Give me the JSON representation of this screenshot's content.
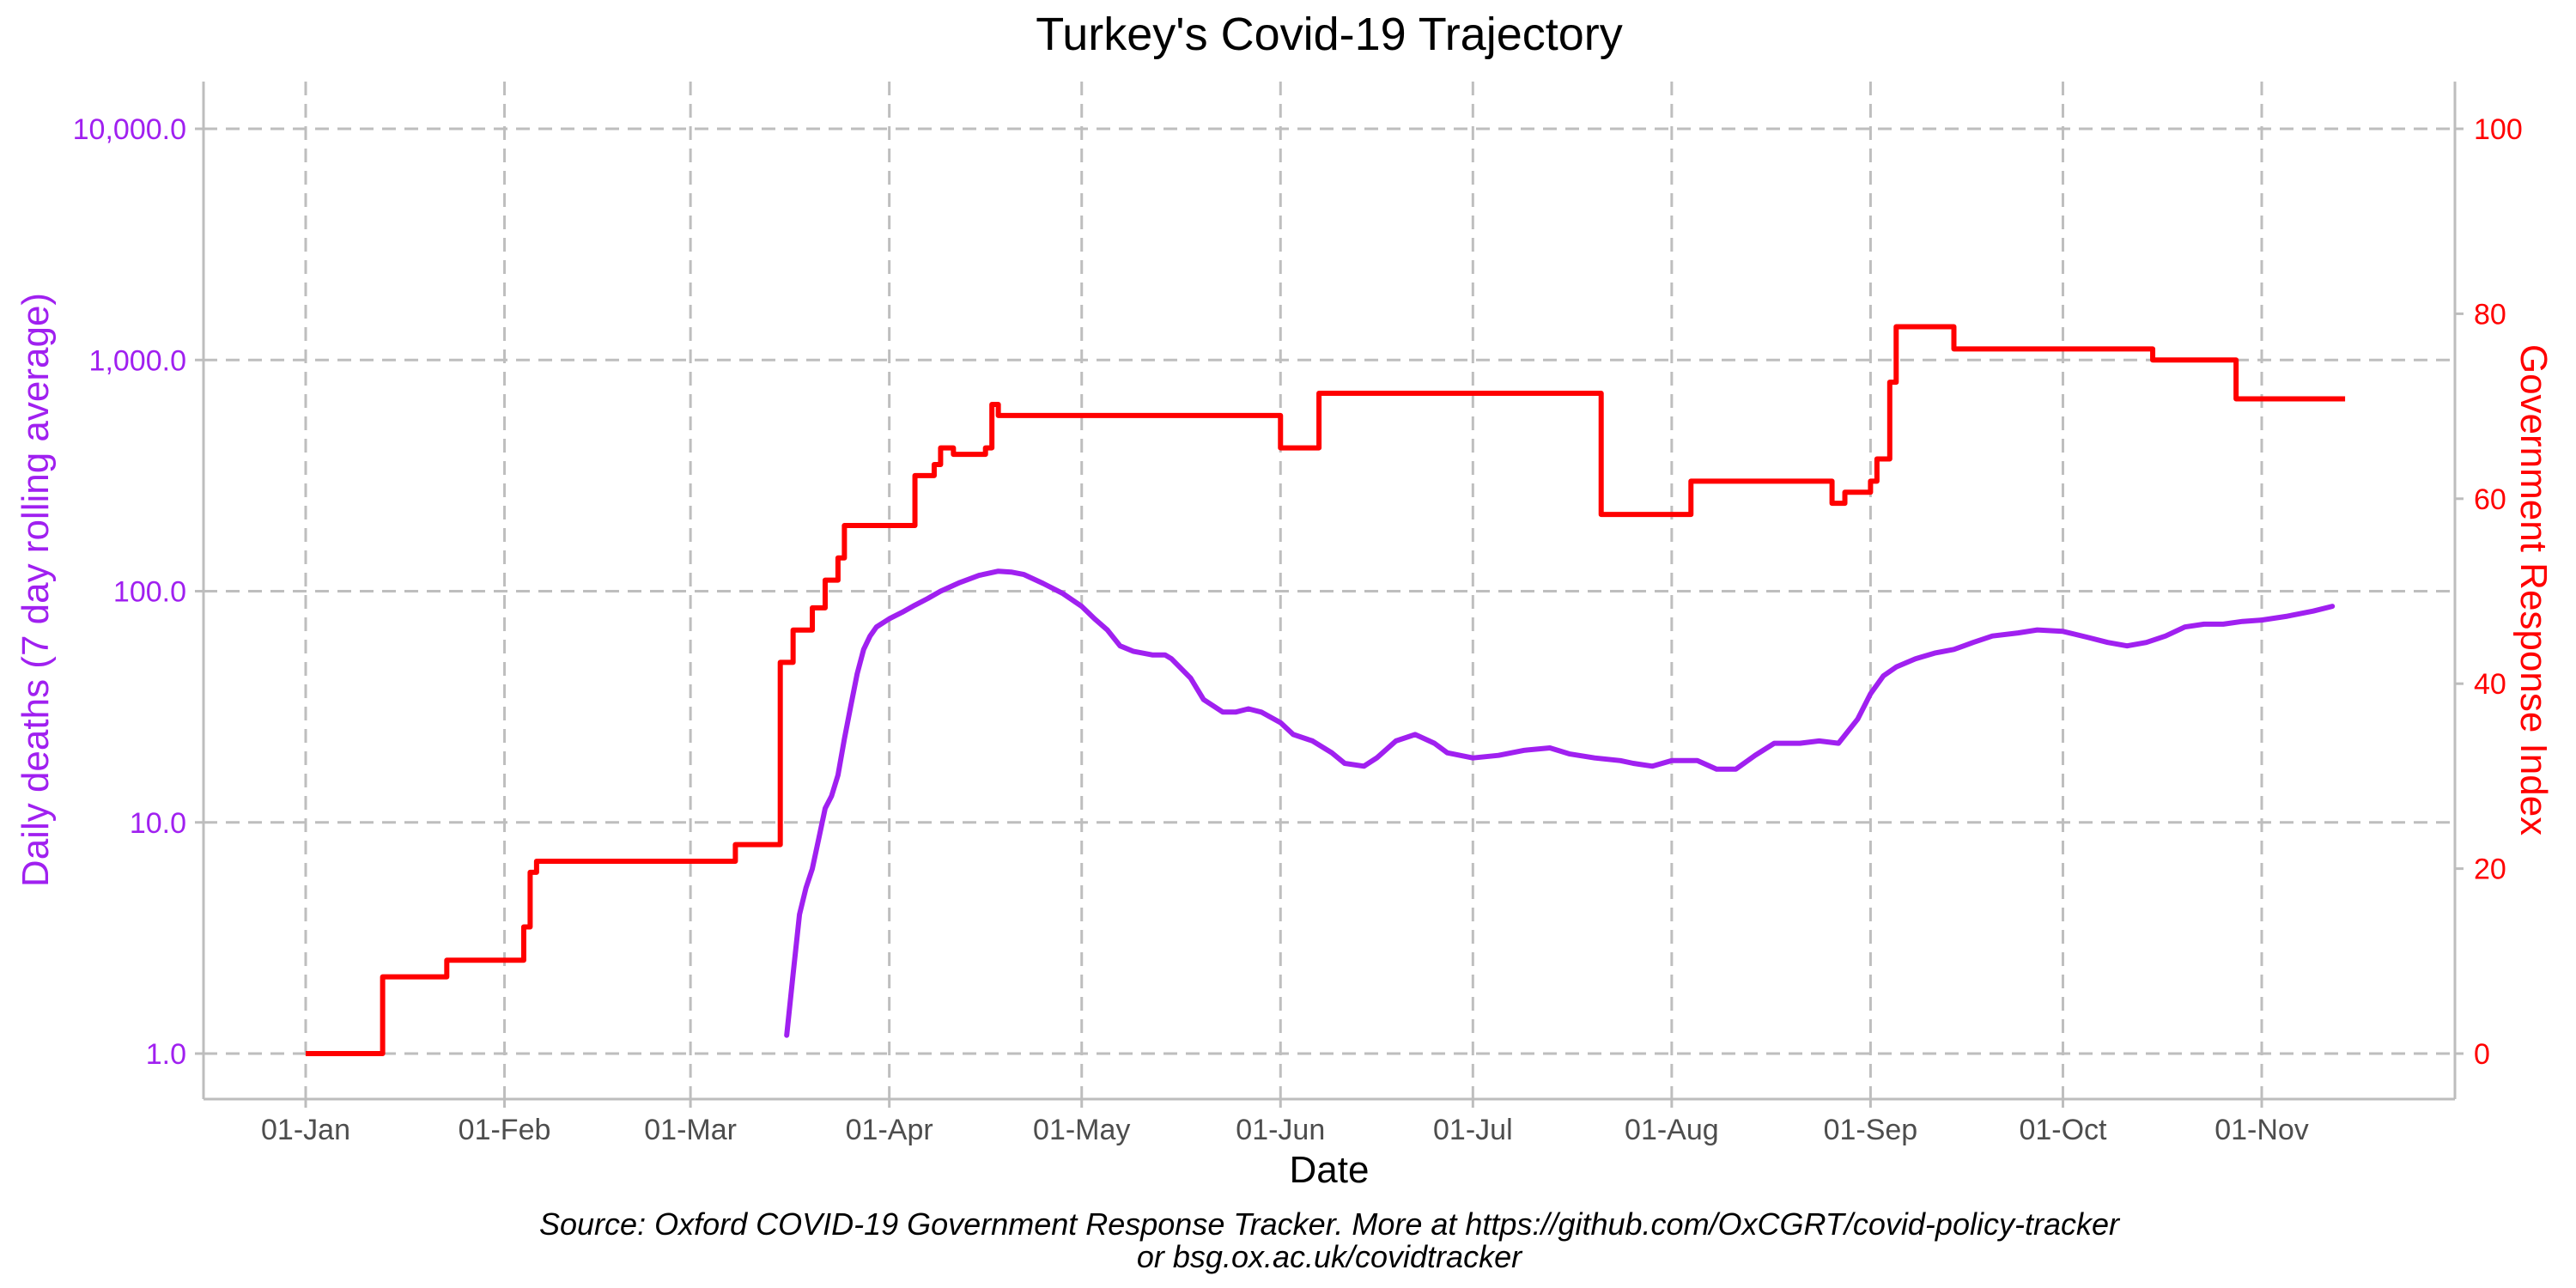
{
  "chart_data": {
    "type": "line",
    "title": "Turkey's Covid-19 Trajectory",
    "xlabel": "Date",
    "ylabel": "Daily deaths (7 day rolling average)",
    "y2label": "Government Response Index",
    "caption_line1": "Source: Oxford COVID-19 Government Response Tracker. More at https://github.com/OxCGRT/covid-policy-tracker",
    "caption_line2": "or bsg.ox.ac.uk/covidtracker",
    "x_ticks": [
      "01-Jan",
      "01-Feb",
      "01-Mar",
      "01-Apr",
      "01-May",
      "01-Jun",
      "01-Jul",
      "01-Aug",
      "01-Sep",
      "01-Oct",
      "01-Nov"
    ],
    "y_ticks": [
      "1.0",
      "10.0",
      "100.0",
      "1,000.0",
      "10,000.0"
    ],
    "y_tick_values": [
      1,
      10,
      100,
      1000,
      10000
    ],
    "y_scale": "log",
    "y2_ticks": [
      "0",
      "20",
      "40",
      "60",
      "80",
      "100"
    ],
    "y2_tick_values": [
      0,
      20,
      40,
      60,
      80,
      100
    ],
    "y2_lim": [
      0,
      100
    ],
    "grid": "dashed major gridlines",
    "colors": {
      "deaths": "#a020f0",
      "response": "#ff0000",
      "grid": "#bebebe",
      "axis": "#bdbdbd",
      "tick_text": "#4d4d4d"
    },
    "series": [
      {
        "name": "Daily deaths (7 day rolling average)",
        "axis": "left",
        "points": [
          [
            "03-16",
            1.2
          ],
          [
            "03-17",
            2.2
          ],
          [
            "03-18",
            4.0
          ],
          [
            "03-19",
            5.2
          ],
          [
            "03-20",
            6.3
          ],
          [
            "03-21",
            8.5
          ],
          [
            "03-22",
            11.5
          ],
          [
            "03-23",
            13.0
          ],
          [
            "03-24",
            16.0
          ],
          [
            "03-25",
            23.0
          ],
          [
            "03-26",
            32.0
          ],
          [
            "03-27",
            44.0
          ],
          [
            "03-28",
            56.0
          ],
          [
            "03-29",
            64.0
          ],
          [
            "03-30",
            70.0
          ],
          [
            "04-01",
            76.0
          ],
          [
            "04-03",
            81.0
          ],
          [
            "04-05",
            87.0
          ],
          [
            "04-07",
            93.0
          ],
          [
            "04-09",
            100.0
          ],
          [
            "04-12",
            109.0
          ],
          [
            "04-15",
            117.0
          ],
          [
            "04-18",
            122.0
          ],
          [
            "04-20",
            121.0
          ],
          [
            "04-22",
            118.0
          ],
          [
            "04-25",
            108.0
          ],
          [
            "04-28",
            98.0
          ],
          [
            "05-01",
            86.0
          ],
          [
            "05-03",
            76.0
          ],
          [
            "05-05",
            68.0
          ],
          [
            "05-07",
            58.0
          ],
          [
            "05-09",
            55.0
          ],
          [
            "05-12",
            53.0
          ],
          [
            "05-14",
            53.0
          ],
          [
            "05-15",
            51.0
          ],
          [
            "05-18",
            42.0
          ],
          [
            "05-20",
            34.0
          ],
          [
            "05-23",
            30.0
          ],
          [
            "05-25",
            30.0
          ],
          [
            "05-27",
            31.0
          ],
          [
            "05-29",
            30.0
          ],
          [
            "06-01",
            27.0
          ],
          [
            "06-03",
            24.0
          ],
          [
            "06-06",
            22.5
          ],
          [
            "06-09",
            20.0
          ],
          [
            "06-11",
            18.0
          ],
          [
            "06-14",
            17.5
          ],
          [
            "06-16",
            19.0
          ],
          [
            "06-19",
            22.5
          ],
          [
            "06-22",
            24.0
          ],
          [
            "06-25",
            22.0
          ],
          [
            "06-27",
            20.0
          ],
          [
            "07-01",
            19.0
          ],
          [
            "07-05",
            19.5
          ],
          [
            "07-09",
            20.5
          ],
          [
            "07-13",
            21.0
          ],
          [
            "07-16",
            19.8
          ],
          [
            "07-20",
            19.0
          ],
          [
            "07-24",
            18.5
          ],
          [
            "07-26",
            18.0
          ],
          [
            "07-29",
            17.5
          ],
          [
            "08-01",
            18.5
          ],
          [
            "08-05",
            18.5
          ],
          [
            "08-08",
            17.0
          ],
          [
            "08-11",
            17.0
          ],
          [
            "08-14",
            19.5
          ],
          [
            "08-17",
            22.0
          ],
          [
            "08-21",
            22.0
          ],
          [
            "08-24",
            22.5
          ],
          [
            "08-27",
            22.0
          ],
          [
            "08-30",
            28.0
          ],
          [
            "09-01",
            36.0
          ],
          [
            "09-03",
            43.0
          ],
          [
            "09-05",
            47.0
          ],
          [
            "09-08",
            51.0
          ],
          [
            "09-11",
            54.0
          ],
          [
            "09-14",
            56.0
          ],
          [
            "09-17",
            60.0
          ],
          [
            "09-20",
            64.0
          ],
          [
            "09-24",
            66.0
          ],
          [
            "09-27",
            68.0
          ],
          [
            "10-01",
            67.0
          ],
          [
            "10-05",
            63.0
          ],
          [
            "10-08",
            60.0
          ],
          [
            "10-11",
            58.0
          ],
          [
            "10-14",
            60.0
          ],
          [
            "10-17",
            64.0
          ],
          [
            "10-20",
            70.0
          ],
          [
            "10-23",
            72.0
          ],
          [
            "10-26",
            72.0
          ],
          [
            "10-29",
            74.0
          ],
          [
            "11-01",
            75.0
          ],
          [
            "11-05",
            78.0
          ],
          [
            "11-09",
            82.0
          ],
          [
            "11-12",
            86.0
          ]
        ]
      },
      {
        "name": "Government Response Index",
        "axis": "right",
        "steps": [
          [
            "01-01",
            0
          ],
          [
            "01-13",
            8.3
          ],
          [
            "01-23",
            10.1
          ],
          [
            "02-04",
            13.7
          ],
          [
            "02-05",
            19.6
          ],
          [
            "02-06",
            20.8
          ],
          [
            "03-08",
            22.6
          ],
          [
            "03-15",
            42.3
          ],
          [
            "03-16",
            42.3
          ],
          [
            "03-17",
            45.8
          ],
          [
            "03-19",
            45.8
          ],
          [
            "03-20",
            48.2
          ],
          [
            "03-22",
            51.2
          ],
          [
            "03-24",
            53.6
          ],
          [
            "03-25",
            57.1
          ],
          [
            "04-05",
            62.5
          ],
          [
            "04-08",
            63.7
          ],
          [
            "04-09",
            65.5
          ],
          [
            "04-10",
            65.5
          ],
          [
            "04-11",
            64.8
          ],
          [
            "04-16",
            65.5
          ],
          [
            "04-17",
            70.2
          ],
          [
            "04-18",
            69.0
          ],
          [
            "06-01",
            65.5
          ],
          [
            "06-07",
            71.4
          ],
          [
            "07-21",
            58.3
          ],
          [
            "08-04",
            61.9
          ],
          [
            "08-26",
            59.5
          ],
          [
            "08-28",
            60.7
          ],
          [
            "09-01",
            61.9
          ],
          [
            "09-02",
            64.3
          ],
          [
            "09-04",
            72.6
          ],
          [
            "09-05",
            78.6
          ],
          [
            "09-14",
            76.2
          ],
          [
            "10-15",
            75.0
          ],
          [
            "10-28",
            70.8
          ],
          [
            "11-14",
            70.8
          ]
        ]
      }
    ]
  }
}
